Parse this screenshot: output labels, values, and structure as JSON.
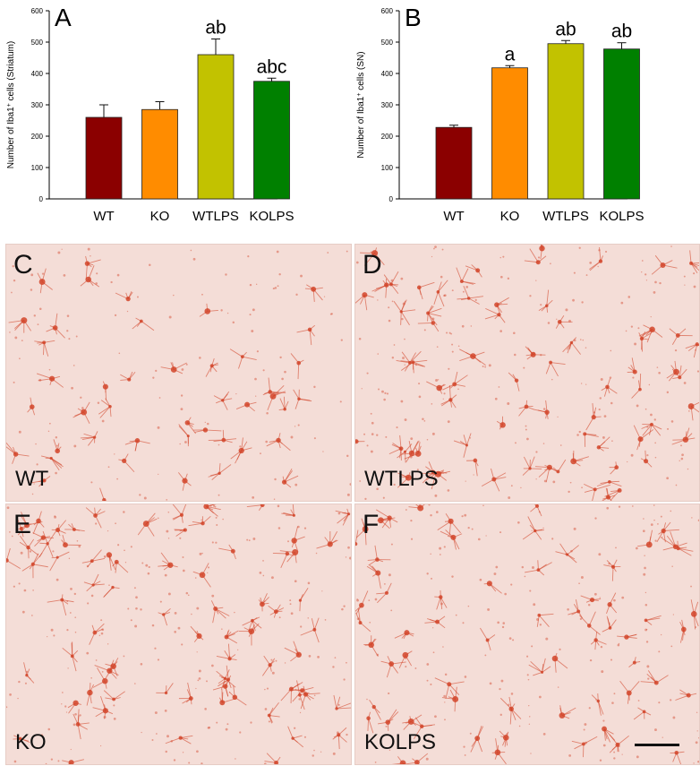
{
  "chart_data": [
    {
      "type": "bar",
      "panel_letter": "A",
      "categories": [
        "WT",
        "KO",
        "WTLPS",
        "KOLPS"
      ],
      "values": [
        260,
        285,
        460,
        375
      ],
      "errors": [
        40,
        25,
        50,
        10
      ],
      "significance": [
        "",
        "",
        "ab",
        "abc"
      ],
      "bar_colors": [
        "#8b0000",
        "#ff8c00",
        "#c2c200",
        "#008000"
      ],
      "ylabel": "Number of Iba1+ cells (Striatum)",
      "ylabel_main": "Number of Iba1",
      "ylabel_sup": "+",
      "ylabel_rest": " cells (Striatum)",
      "ylim": [
        0,
        600
      ],
      "yticks": [
        0,
        100,
        200,
        300,
        400,
        500,
        600
      ],
      "grid": false
    },
    {
      "type": "bar",
      "panel_letter": "B",
      "categories": [
        "WT",
        "KO",
        "WTLPS",
        "KOLPS"
      ],
      "values": [
        228,
        418,
        495,
        478
      ],
      "errors": [
        7,
        7,
        10,
        20
      ],
      "significance": [
        "",
        "a",
        "ab",
        "ab"
      ],
      "bar_colors": [
        "#8b0000",
        "#ff8c00",
        "#c2c200",
        "#008000"
      ],
      "ylabel": "Number of Iba1+ cells (SN)",
      "ylabel_main": "Number of Iba1",
      "ylabel_sup": "+",
      "ylabel_rest": " cells (SN)",
      "ylim": [
        0,
        600
      ],
      "yticks": [
        0,
        100,
        200,
        300,
        400,
        500,
        600
      ],
      "grid": false
    }
  ],
  "micrographs": [
    {
      "letter": "C",
      "group": "WT",
      "density": 0.8
    },
    {
      "letter": "D",
      "group": "WTLPS",
      "density": 1.3
    },
    {
      "letter": "E",
      "group": "KO",
      "density": 1.4
    },
    {
      "letter": "F",
      "group": "KOLPS",
      "density": 1.2
    }
  ],
  "colors": {
    "tissue_background": "#f4ddd7",
    "stain": "#d2452a"
  }
}
